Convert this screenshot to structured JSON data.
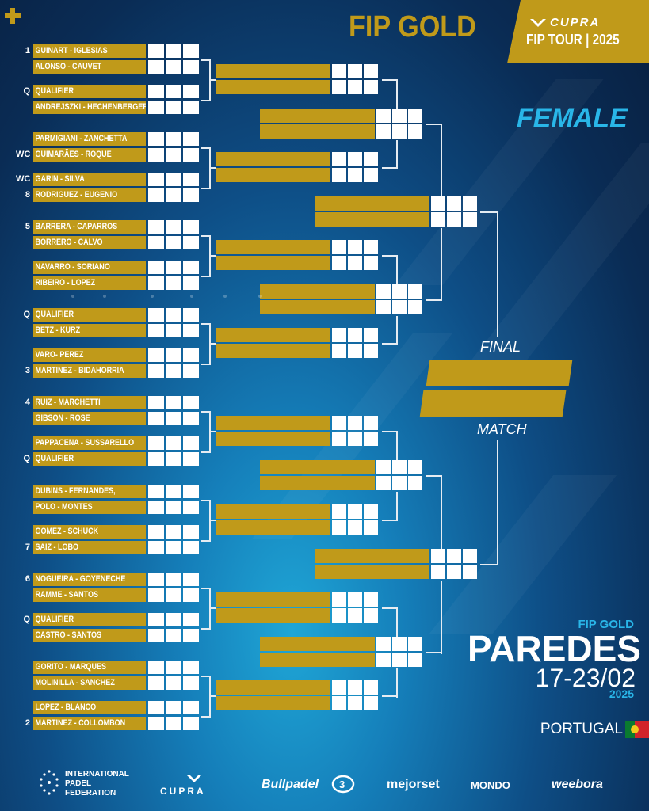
{
  "header": {
    "title": "FIP GOLD",
    "brand": "CUPRA",
    "tour": "FIP TOUR | 2025",
    "category": "FEMALE"
  },
  "draw": {
    "entries": [
      {
        "seed": "1",
        "name": "GUINART - IGLESIAS"
      },
      {
        "seed": "",
        "name": "ALONSO - CAUVET"
      },
      {
        "seed": "Q",
        "name": "QUALIFIER"
      },
      {
        "seed": "",
        "name": "ANDREJSZKI - HECHENBERGER"
      },
      {
        "seed": "",
        "name": "PARMIGIANI - ZANCHETTA"
      },
      {
        "seed": "WC",
        "name": "GUIMARÃES - ROQUE"
      },
      {
        "seed": "WC",
        "name": "GARIN - SILVA"
      },
      {
        "seed": "8",
        "name": "RODRIGUEZ - EUGENIO"
      },
      {
        "seed": "5",
        "name": "BARRERA - CAPARROS"
      },
      {
        "seed": "",
        "name": "BORRERO - CALVO"
      },
      {
        "seed": "",
        "name": "NAVARRO - SORIANO"
      },
      {
        "seed": "",
        "name": "RIBEIRO - LOPEZ"
      },
      {
        "seed": "Q",
        "name": "QUALIFIER"
      },
      {
        "seed": "",
        "name": "BETZ - KURZ"
      },
      {
        "seed": "",
        "name": "VARO- PEREZ"
      },
      {
        "seed": "3",
        "name": "MARTINEZ - BIDAHORRIA"
      },
      {
        "seed": "4",
        "name": "RUIZ - MARCHETTI"
      },
      {
        "seed": "",
        "name": "GIBSON - ROSE"
      },
      {
        "seed": "",
        "name": "PAPPACENA - SUSSARELLO"
      },
      {
        "seed": "Q",
        "name": "QUALIFIER"
      },
      {
        "seed": "",
        "name": "DUBINS - FERNANDES,"
      },
      {
        "seed": "",
        "name": "POLO - MONTES"
      },
      {
        "seed": "",
        "name": "GOMEZ - SCHUCK"
      },
      {
        "seed": "7",
        "name": "SAIZ - LOBO"
      },
      {
        "seed": "6",
        "name": "NOGUEIRA - GOYENECHE"
      },
      {
        "seed": "",
        "name": "RAMME - SANTOS"
      },
      {
        "seed": "Q",
        "name": "QUALIFIER"
      },
      {
        "seed": "",
        "name": "CASTRO - SANTOS"
      },
      {
        "seed": "",
        "name": "GORITO - MARQUES"
      },
      {
        "seed": "",
        "name": "MOLINILLA - SANCHEZ"
      },
      {
        "seed": "",
        "name": "LOPEZ - BLANCO"
      },
      {
        "seed": "2",
        "name": "MARTINEZ - COLLOMBON"
      }
    ]
  },
  "final": {
    "label_top": "FINAL",
    "label_bottom": "MATCH"
  },
  "event": {
    "tier": "FIP GOLD",
    "city": "PAREDES",
    "dates": "17-23/02",
    "year": "2025",
    "country": "PORTUGAL"
  },
  "sponsors": {
    "fip": [
      "INTERNATIONAL",
      "PADEL",
      "FEDERATION"
    ],
    "cupra": "CUPRA",
    "bullpadel": "Bullpadel",
    "mejorset": "mejorset",
    "mondo": "MONDO",
    "weebora": "weebora"
  },
  "colors": {
    "gold": "#c09a1a",
    "accent_blue": "#29b6e8",
    "background_dark": "#0a2c55"
  }
}
